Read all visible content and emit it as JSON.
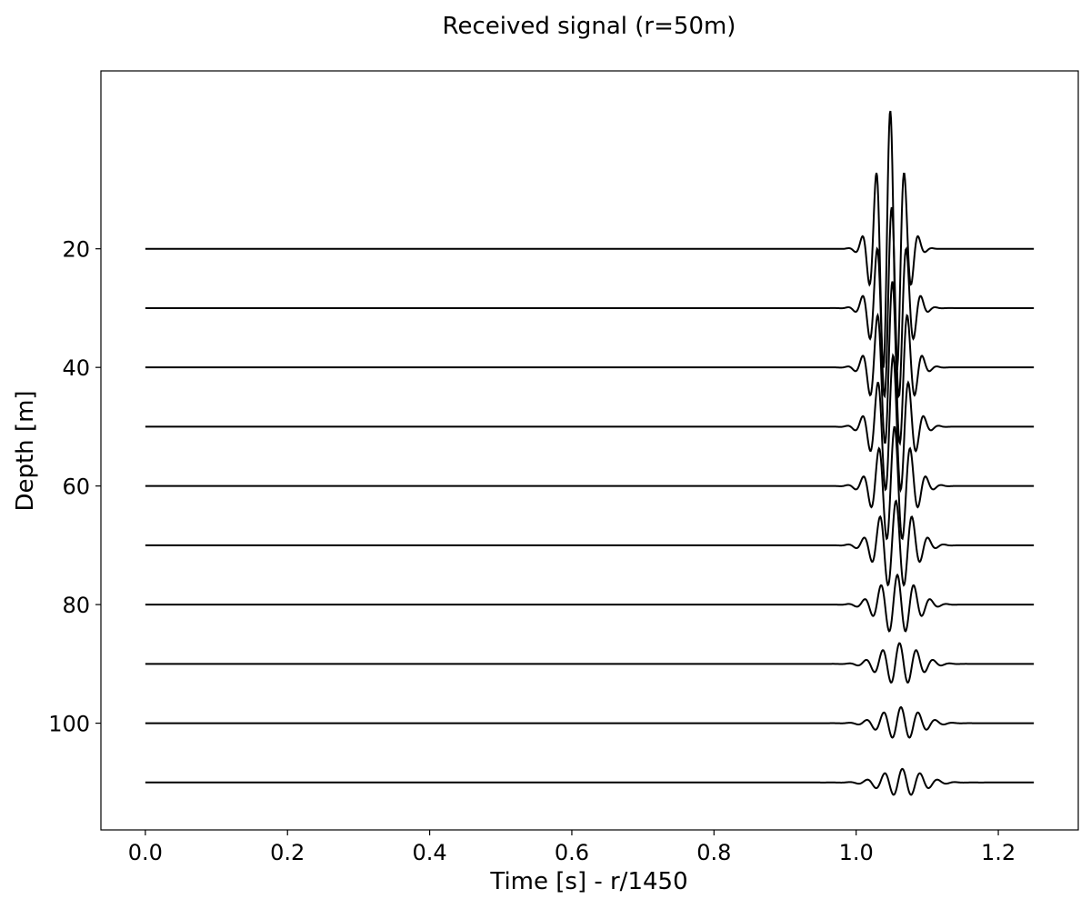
{
  "chart_data": {
    "type": "line",
    "title": "Received signal (r=50m)",
    "xlabel": "Time [s] - r/1450",
    "ylabel": "Depth [m]",
    "xlim": [
      -0.0625,
      1.3125
    ],
    "ylim": [
      118,
      -10
    ],
    "y_inverted": true,
    "grid": false,
    "line_color": "#000000",
    "x_ticks": [
      0.0,
      0.2,
      0.4,
      0.6,
      0.8,
      1.0,
      1.2
    ],
    "x_tick_labels": [
      "0.0",
      "0.2",
      "0.4",
      "0.6",
      "0.8",
      "1.0",
      "1.2"
    ],
    "y_ticks": [
      20,
      40,
      60,
      80,
      100
    ],
    "y_tick_labels": [
      "20",
      "40",
      "60",
      "80",
      "100"
    ],
    "time_range": [
      0.0,
      1.25
    ],
    "series": [
      {
        "depth": 20,
        "arrival": 1.048,
        "amplitude": 23.3,
        "freq": 50,
        "decay": 0.018
      },
      {
        "depth": 30,
        "arrival": 1.05,
        "amplitude": 17.0,
        "freq": 48,
        "decay": 0.02
      },
      {
        "depth": 40,
        "arrival": 1.051,
        "amplitude": 14.5,
        "freq": 47,
        "decay": 0.021
      },
      {
        "depth": 50,
        "arrival": 1.052,
        "amplitude": 12.0,
        "freq": 46,
        "decay": 0.022
      },
      {
        "depth": 60,
        "arrival": 1.054,
        "amplitude": 10.0,
        "freq": 45,
        "decay": 0.023
      },
      {
        "depth": 70,
        "arrival": 1.056,
        "amplitude": 7.5,
        "freq": 44,
        "decay": 0.024
      },
      {
        "depth": 80,
        "arrival": 1.058,
        "amplitude": 5.0,
        "freq": 43,
        "decay": 0.025
      },
      {
        "depth": 90,
        "arrival": 1.061,
        "amplitude": 3.5,
        "freq": 42,
        "decay": 0.026
      },
      {
        "depth": 100,
        "arrival": 1.063,
        "amplitude": 2.7,
        "freq": 41,
        "decay": 0.027
      },
      {
        "depth": 110,
        "arrival": 1.065,
        "amplitude": 2.3,
        "freq": 40,
        "decay": 0.028
      }
    ]
  }
}
